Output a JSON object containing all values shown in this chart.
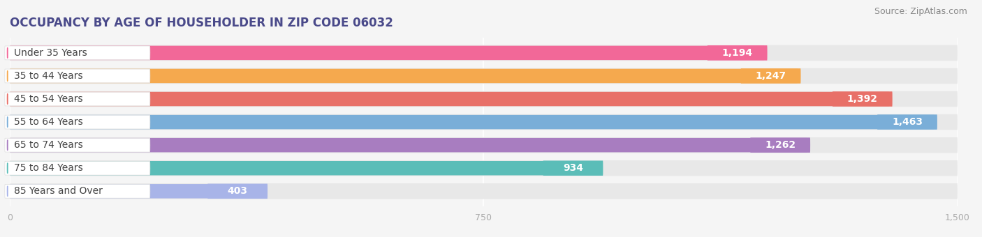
{
  "title": "OCCUPANCY BY AGE OF HOUSEHOLDER IN ZIP CODE 06032",
  "source": "Source: ZipAtlas.com",
  "categories": [
    "Under 35 Years",
    "35 to 44 Years",
    "45 to 54 Years",
    "55 to 64 Years",
    "65 to 74 Years",
    "75 to 84 Years",
    "85 Years and Over"
  ],
  "values": [
    1194,
    1247,
    1392,
    1463,
    1262,
    934,
    403
  ],
  "bar_colors": [
    "#F26898",
    "#F5A94E",
    "#E87068",
    "#7AAED8",
    "#A87DC0",
    "#5BBDB8",
    "#A8B4E8"
  ],
  "xlim": [
    -20,
    1500
  ],
  "xticks": [
    0,
    750,
    1500
  ],
  "background_color": "#f5f5f5",
  "bar_track_color": "#e8e8e8",
  "label_bg_color": "#ffffff",
  "title_fontsize": 12,
  "source_fontsize": 9,
  "label_fontsize": 10,
  "value_fontsize": 10
}
